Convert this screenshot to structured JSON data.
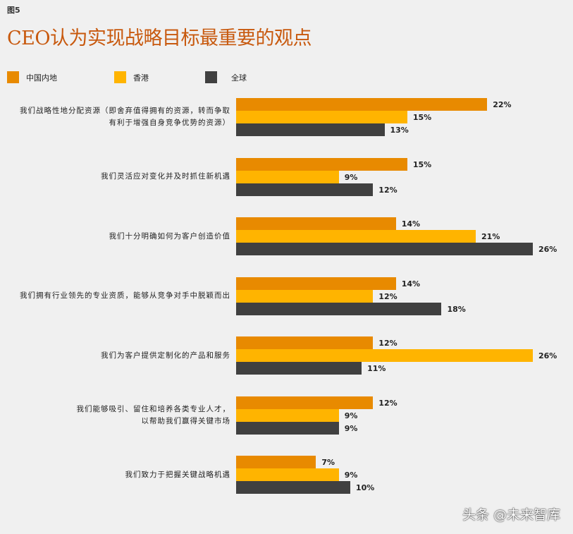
{
  "figure_label": "图5",
  "chart_data": {
    "type": "bar",
    "orientation": "horizontal",
    "title": "CEO认为实现战略目标最重要的观点",
    "legend_position": "top",
    "grid": false,
    "unit": "%",
    "categories": [
      "我们战略性地分配资源（即舍弃值得拥有的资源，转而争取有利于增强自身竞争优势的资源）",
      "我们灵活应对变化并及时抓住新机遇",
      "我们十分明确如何为客户创造价值",
      "我们拥有行业领先的专业资质，能够从竞争对手中脱颖而出",
      "我们为客户提供定制化的产品和服务",
      "我们能够吸引、留住和培养各类专业人才，以帮助我们赢得关键市场",
      "我们致力于把握关键战略机遇"
    ],
    "category_lines": [
      [
        "我们战略性地分配资源（即舍弃值得拥有的资源，转而争取",
        "有利于增强自身竞争优势的资源）"
      ],
      [
        "我们灵活应对变化并及时抓住新机遇"
      ],
      [
        "我们十分明确如何为客户创造价值"
      ],
      [
        "我们拥有行业领先的专业资质，能够从竞争对手中脱颖而出"
      ],
      [
        "我们为客户提供定制化的产品和服务"
      ],
      [
        "我们能够吸引、留住和培养各类专业人才，",
        "以帮助我们赢得关键市场"
      ],
      [
        "我们致力于把握关键战略机遇"
      ]
    ],
    "series": [
      {
        "name": "中国内地",
        "color": "#e88a00",
        "values": [
          22,
          15,
          14,
          14,
          12,
          12,
          7
        ]
      },
      {
        "name": "香港",
        "color": "#ffb400",
        "values": [
          15,
          9,
          21,
          12,
          26,
          9,
          9
        ]
      },
      {
        "name": "全球",
        "color": "#404040",
        "values": [
          13,
          12,
          26,
          18,
          11,
          9,
          10
        ]
      }
    ],
    "xlim": [
      0,
      26
    ]
  },
  "watermark": "头条 @未来智库"
}
